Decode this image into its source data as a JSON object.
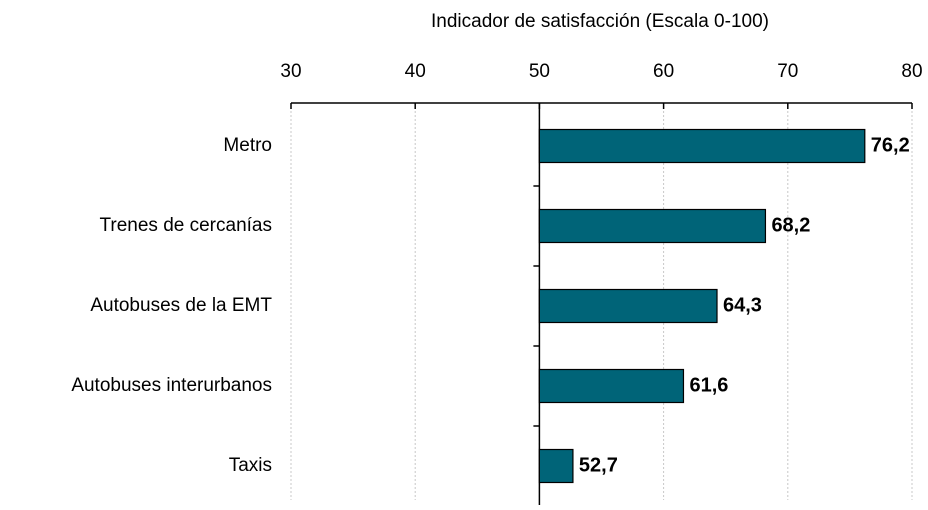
{
  "chart_data": {
    "type": "bar",
    "orientation": "horizontal",
    "title": "Indicador de satisfacción (Escala 0-100)",
    "categories": [
      "Metro",
      "Trenes de cercanías",
      "Autobuses de la EMT",
      "Autobuses interurbanos",
      "Taxis"
    ],
    "values": [
      76.2,
      68.2,
      64.3,
      61.6,
      52.7
    ],
    "value_labels": [
      "76,2",
      "68,2",
      "64,3",
      "61,6",
      "52,7"
    ],
    "color": "#006478",
    "baseline": 50,
    "xlim": [
      30,
      80
    ],
    "xticks": [
      30,
      40,
      50,
      60,
      70,
      80
    ],
    "grid": true
  }
}
